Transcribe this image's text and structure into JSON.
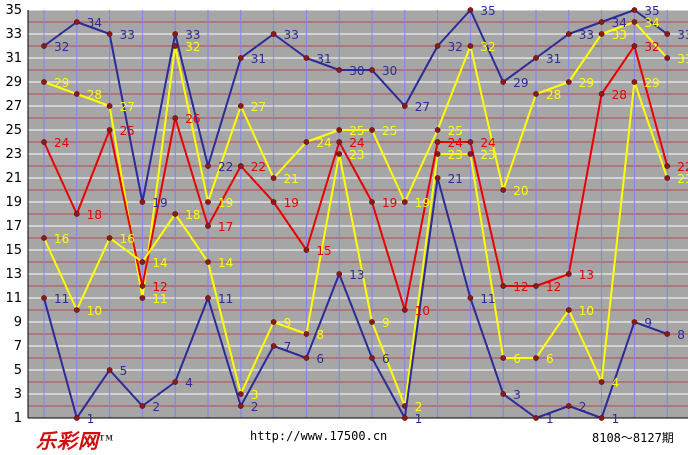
{
  "chart_data": {
    "type": "line",
    "title": "",
    "xlabel": "",
    "ylabel": "",
    "ylim": [
      1,
      35
    ],
    "y_ticks": [
      1,
      3,
      5,
      7,
      9,
      11,
      13,
      15,
      17,
      19,
      21,
      23,
      25,
      27,
      29,
      31,
      33,
      35
    ],
    "x": [
      1,
      2,
      3,
      4,
      5,
      6,
      7,
      8,
      9,
      10,
      11,
      12,
      13,
      14,
      15,
      16,
      17,
      18,
      19,
      20
    ],
    "grid": true,
    "background": "#a6a6a6",
    "series": [
      {
        "color": "#2b2b9a",
        "values": [
          32,
          34,
          33,
          19,
          33,
          22,
          31,
          33,
          31,
          30,
          30,
          27,
          32,
          35,
          29,
          31,
          33,
          34,
          35,
          33
        ]
      },
      {
        "color": "#ffff00",
        "values": [
          29,
          28,
          27,
          11,
          32,
          19,
          27,
          21,
          24,
          25,
          25,
          19,
          25,
          32,
          20,
          28,
          29,
          33,
          34,
          31
        ]
      },
      {
        "color": "#e80000",
        "values": [
          24,
          18,
          25,
          12,
          26,
          17,
          22,
          19,
          15,
          24,
          19,
          10,
          24,
          24,
          12,
          12,
          13,
          28,
          32,
          22
        ]
      },
      {
        "color": "#ffff00",
        "values": [
          16,
          10,
          16,
          14,
          18,
          14,
          3,
          9,
          8,
          23,
          9,
          2,
          23,
          23,
          6,
          6,
          10,
          4,
          29,
          21
        ]
      },
      {
        "color": "#2b2b9a",
        "values": [
          11,
          1,
          5,
          2,
          4,
          11,
          2,
          7,
          6,
          13,
          6,
          1,
          21,
          11,
          3,
          1,
          2,
          1,
          9,
          8
        ]
      }
    ]
  },
  "footer": {
    "logo_text": "乐彩网",
    "logo_tm": "TM",
    "url": "http://www.17500.cn",
    "period_range": "8108～8127期"
  }
}
